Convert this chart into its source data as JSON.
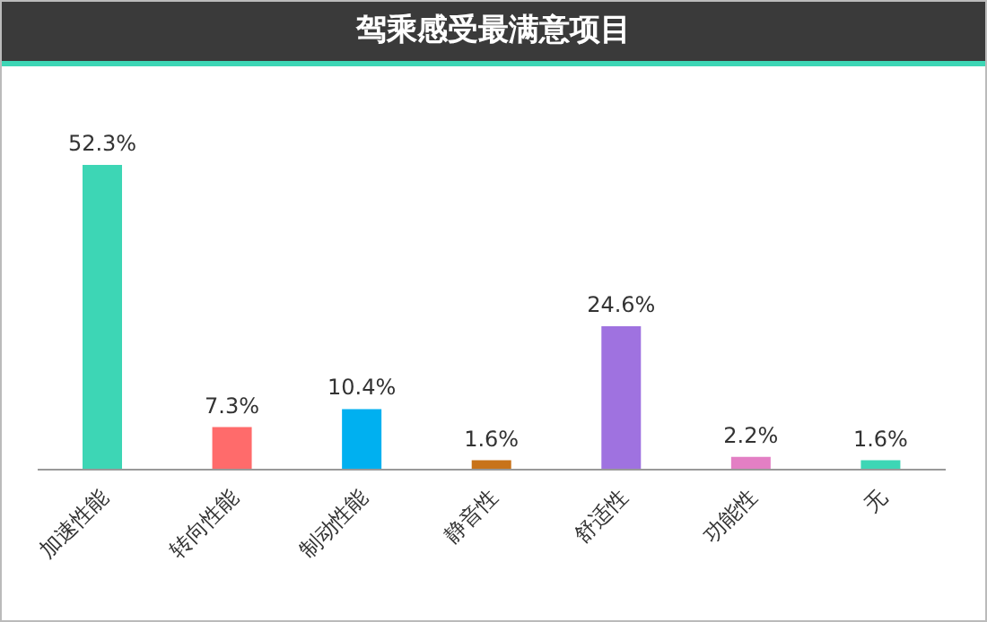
{
  "chart_data": {
    "type": "bar",
    "title": "驾乘感受最满意项目",
    "categories": [
      "加速性能",
      "转向性能",
      "制动性能",
      "静音性",
      "舒适性",
      "功能性",
      "无"
    ],
    "values": [
      52.3,
      7.3,
      10.4,
      1.6,
      24.6,
      2.2,
      1.6
    ],
    "value_labels": [
      "52.3%",
      "7.3%",
      "10.4%",
      "1.6%",
      "24.6%",
      "2.2%",
      "1.6%"
    ],
    "colors": [
      "#3dd6b5",
      "#ff6b6b",
      "#00b0f0",
      "#c8731a",
      "#9f72e0",
      "#e37fc4",
      "#3dd6b5"
    ],
    "grid": false,
    "legend": false
  }
}
